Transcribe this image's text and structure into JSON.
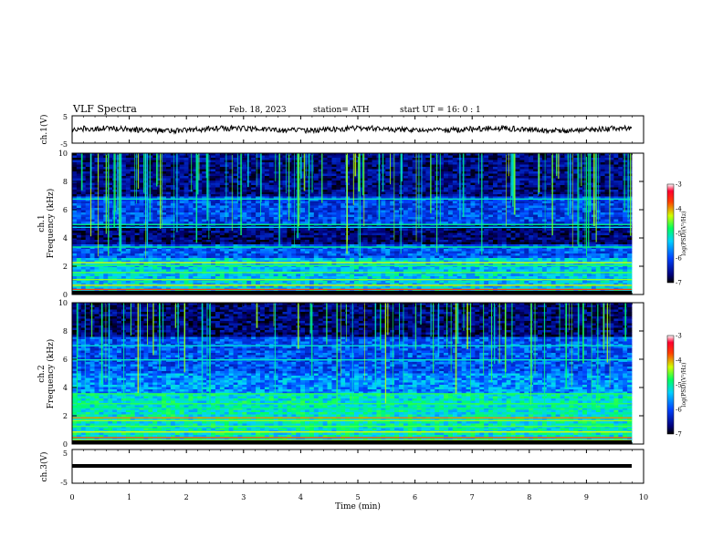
{
  "header": {
    "title": "VLF  Spectra",
    "date": "Feb. 18, 2023",
    "station": "station= ATH",
    "start": "start  UT  =    16: 0   : 1"
  },
  "chart_data": [
    {
      "type": "line",
      "panel": "ch1-waveform",
      "ylabel": "ch.1(V)",
      "ylim": [
        -5,
        5
      ],
      "yticks": [
        "5",
        "-5"
      ],
      "xlim": [
        0,
        10
      ],
      "series": [
        {
          "values_note": "noisy waveform around 0 V, amplitude about ±1 V"
        }
      ]
    },
    {
      "type": "heatmap",
      "panel": "ch1-spectrogram",
      "ylabel_line1": "ch.1",
      "ylabel_line2": "Frequency  (kHz)",
      "ylim": [
        0,
        10
      ],
      "yticks": [
        "0",
        "2",
        "4",
        "6",
        "8",
        "10"
      ],
      "xlim": [
        0,
        10
      ],
      "colorbar": {
        "label": "log(PSD)(V²/Hz)",
        "ticks": [
          "-3",
          "-4",
          "-5",
          "-6",
          "-7"
        ],
        "range": [
          -7,
          -3
        ]
      }
    },
    {
      "type": "heatmap",
      "panel": "ch2-spectrogram",
      "ylabel_line1": "ch.2",
      "ylabel_line2": "Frequency  (kHz)",
      "ylim": [
        0,
        10
      ],
      "yticks": [
        "0",
        "2",
        "4",
        "6",
        "8",
        "10"
      ],
      "xlim": [
        0,
        10
      ],
      "colorbar": {
        "label": "log(PSD)(V²/Hz)",
        "ticks": [
          "-3",
          "-4",
          "-5",
          "-6",
          "-7"
        ],
        "range": [
          -7,
          -3
        ]
      }
    },
    {
      "type": "line",
      "panel": "ch3-waveform",
      "ylabel": "ch.3(V)",
      "ylim": [
        -5,
        5
      ],
      "yticks": [
        "5",
        "-5"
      ],
      "xlim": [
        0,
        10
      ],
      "xlabel": "Time  (min)",
      "xticks": [
        "0",
        "1",
        "2",
        "3",
        "4",
        "5",
        "6",
        "7",
        "8",
        "9",
        "10"
      ],
      "series": [
        {
          "values_note": "flat line at about -2 V"
        }
      ]
    }
  ],
  "colors": {
    "axis": "#000000",
    "background": "#ffffff"
  }
}
